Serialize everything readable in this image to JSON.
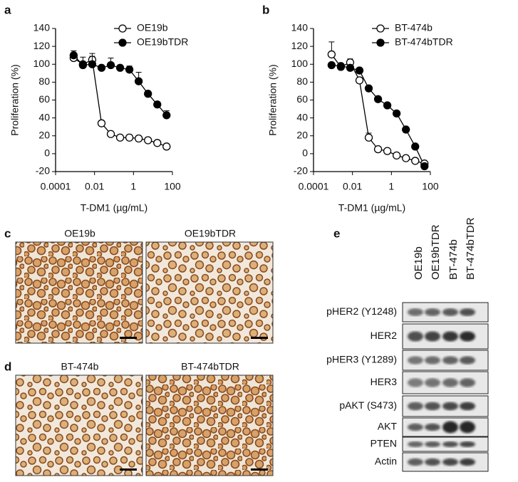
{
  "chart_data": [
    {
      "type": "line",
      "panel_label": "a",
      "y_label": "Proliferation (%)",
      "x_label": "T-DM1 (µg/mL)",
      "xscale": "log",
      "x": [
        0.000847,
        0.00254,
        0.00762,
        0.0229,
        0.0686,
        0.206,
        0.617,
        1.85,
        5.56,
        16.7,
        50
      ],
      "xlim": [
        0.0001,
        100
      ],
      "xticks": [
        0.0001,
        0.01,
        1,
        100
      ],
      "ylim": [
        -20,
        140
      ],
      "yticks": [
        -20,
        0,
        20,
        40,
        60,
        80,
        100,
        120,
        140
      ],
      "legend": "upper right",
      "series": [
        {
          "name": "OE19b",
          "color": "#000000",
          "fill": "#ffffff",
          "values": [
            107,
            100,
            105,
            34,
            22,
            18,
            18,
            17,
            15,
            12,
            8
          ],
          "errors": [
            3,
            8,
            4,
            3,
            2,
            2,
            2,
            2,
            2,
            2,
            3
          ]
        },
        {
          "name": "OE19bTDR",
          "color": "#000000",
          "fill": "#000000",
          "values": [
            110,
            99,
            100,
            96,
            99,
            96,
            94,
            81,
            67,
            55,
            43
          ],
          "errors": [
            5,
            2,
            12,
            2,
            8,
            3,
            4,
            10,
            3,
            3,
            5
          ]
        }
      ]
    },
    {
      "type": "line",
      "panel_label": "b",
      "y_label": "Proliferation (%)",
      "x_label": "T-DM1 (µg/mL)",
      "xscale": "log",
      "x": [
        0.000847,
        0.00254,
        0.00762,
        0.0229,
        0.0686,
        0.206,
        0.617,
        1.85,
        5.56,
        16.7,
        50
      ],
      "xlim": [
        0.0001,
        100
      ],
      "xticks": [
        0.0001,
        0.01,
        1,
        100
      ],
      "ylim": [
        -20,
        140
      ],
      "yticks": [
        -20,
        0,
        20,
        40,
        60,
        80,
        100,
        120,
        140
      ],
      "legend": "upper right",
      "series": [
        {
          "name": "BT-474b",
          "color": "#000000",
          "fill": "#ffffff",
          "values": [
            111,
            97,
            102,
            82,
            18,
            5,
            3,
            -2,
            -5,
            -8,
            -11
          ],
          "errors": [
            14,
            3,
            4,
            3,
            5,
            2,
            2,
            2,
            2,
            2,
            2
          ]
        },
        {
          "name": "BT-474bTDR",
          "color": "#000000",
          "fill": "#000000",
          "values": [
            99,
            98,
            96,
            93,
            73,
            61,
            54,
            45,
            27,
            8,
            -14
          ],
          "errors": [
            2,
            2,
            2,
            2,
            2,
            2,
            2,
            2,
            2,
            2,
            2
          ]
        }
      ]
    }
  ],
  "micrographs": [
    {
      "panel_label": "c",
      "titles": [
        "OE19b",
        "OE19bTDR"
      ]
    },
    {
      "panel_label": "d",
      "titles": [
        "BT-474b",
        "BT-474bTDR"
      ]
    }
  ],
  "western_blot": {
    "panel_label": "e",
    "lanes": [
      "OE19b",
      "OE19bTDR",
      "BT-474b",
      "BT-474bTDR"
    ],
    "proteins": [
      "pHER2 (Y1248)",
      "HER2",
      "pHER3 (Y1289)",
      "HER3",
      "pAKT (S473)",
      "AKT",
      "PTEN",
      "Actin"
    ]
  }
}
